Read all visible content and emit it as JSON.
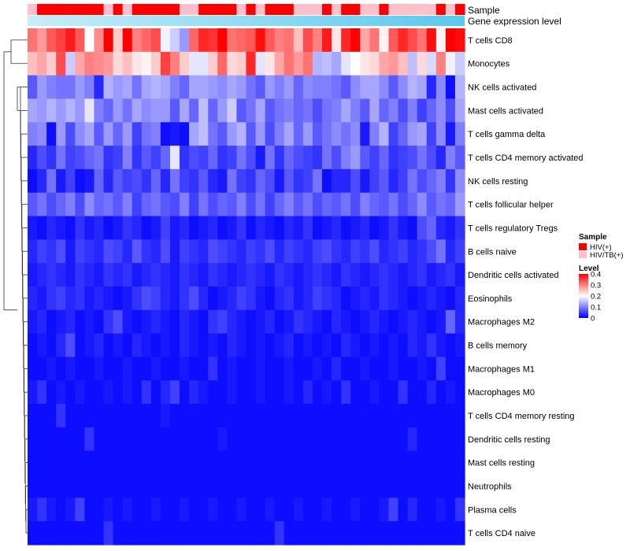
{
  "chart_data": {
    "type": "heatmap",
    "title": "",
    "row_labels": [
      "T cells CD8",
      "Monocytes",
      "NK cells activated",
      "Mast cells activated",
      "T cells gamma delta",
      "T cells CD4 memory activated",
      "NK cells resting",
      "T cells follicular helper",
      "T cells regulatory  Tregs",
      "B cells naive",
      "Dendritic cells activated",
      "Eosinophils",
      "Macrophages M2",
      "B cells memory",
      "Macrophages M1",
      "Macrophages M0",
      "T cells CD4 memory resting",
      "Dendritic cells resting",
      "Mast cells resting",
      "Neutrophils",
      "Plasma cells",
      "T cells CD4 naive"
    ],
    "n_samples": 46,
    "annotation_rows": [
      {
        "name": "Sample",
        "values": [
          "HIV/TB(+)",
          "HIV(+)",
          "HIV(+)",
          "HIV(+)",
          "HIV(+)",
          "HIV(+)",
          "HIV(+)",
          "HIV(+)",
          "HIV/TB(+)",
          "HIV(+)",
          "HIV/TB(+)",
          "HIV(+)",
          "HIV(+)",
          "HIV(+)",
          "HIV(+)",
          "HIV(+)",
          "HIV/TB(+)",
          "HIV/TB(+)",
          "HIV(+)",
          "HIV(+)",
          "HIV(+)",
          "HIV(+)",
          "HIV/TB(+)",
          "HIV(+)",
          "HIV/TB(+)",
          "HIV(+)",
          "HIV(+)",
          "HIV(+)",
          "HIV/TB(+)",
          "HIV/TB(+)",
          "HIV/TB(+)",
          "HIV(+)",
          "HIV/TB(+)",
          "HIV(+)",
          "HIV(+)",
          "HIV/TB(+)",
          "HIV/TB(+)",
          "HIV(+)",
          "HIV/TB(+)",
          "HIV/TB(+)",
          "HIV/TB(+)",
          "HIV/TB(+)",
          "HIV/TB(+)",
          "HIV(+)",
          "HIV/TB(+)",
          "HIV(+)"
        ]
      },
      {
        "name": "Gene expression level",
        "style": "gradient",
        "from": "#c8eef8",
        "to": "#5bc8ee"
      }
    ],
    "legend": {
      "sample_title": "Sample",
      "sample_items": [
        {
          "label": "HIV(+)",
          "color": "#ff0000"
        },
        {
          "label": "HIV/TB(+)",
          "color": "#ffc0cb"
        }
      ],
      "level_title": "Level",
      "level_ticks": [
        "0.4",
        "0.3",
        "0.2",
        "0.1",
        "0"
      ],
      "level_range": [
        0,
        0.4
      ],
      "placement": "right"
    },
    "color_scale": [
      "#0000ff",
      "#ffffff",
      "#ff0000"
    ],
    "values": [
      [
        0.31,
        0.28,
        0.33,
        0.35,
        0.38,
        0.33,
        0.2,
        0.29,
        0.4,
        0.24,
        0.4,
        0.3,
        0.32,
        0.34,
        0.19,
        0.16,
        0.12,
        0.32,
        0.37,
        0.36,
        0.4,
        0.31,
        0.32,
        0.33,
        0.39,
        0.33,
        0.3,
        0.31,
        0.25,
        0.34,
        0.3,
        0.38,
        0.22,
        0.37,
        0.4,
        0.27,
        0.31,
        0.21,
        0.33,
        0.37,
        0.34,
        0.31,
        0.39,
        0.21,
        0.4,
        0.39
      ],
      [
        0.25,
        0.27,
        0.24,
        0.34,
        0.16,
        0.27,
        0.3,
        0.29,
        0.28,
        0.23,
        0.25,
        0.22,
        0.21,
        0.24,
        0.35,
        0.3,
        0.24,
        0.18,
        0.18,
        0.24,
        0.32,
        0.23,
        0.24,
        0.37,
        0.18,
        0.22,
        0.27,
        0.31,
        0.28,
        0.31,
        0.14,
        0.15,
        0.13,
        0.18,
        0.2,
        0.22,
        0.23,
        0.27,
        0.28,
        0.25,
        0.15,
        0.23,
        0.17,
        0.3,
        0.19,
        0.16
      ],
      [
        0.07,
        0.12,
        0.1,
        0.09,
        0.09,
        0.12,
        0.1,
        0.03,
        0.14,
        0.12,
        0.13,
        0.09,
        0.13,
        0.14,
        0.13,
        0.1,
        0.08,
        0.13,
        0.13,
        0.12,
        0.11,
        0.13,
        0.12,
        0.09,
        0.07,
        0.12,
        0.1,
        0.12,
        0.08,
        0.11,
        0.1,
        0.1,
        0.09,
        0.07,
        0.11,
        0.13,
        0.13,
        0.11,
        0.07,
        0.11,
        0.14,
        0.13,
        0.03,
        0.11,
        0.01,
        0.14
      ],
      [
        0.13,
        0.12,
        0.14,
        0.12,
        0.14,
        0.12,
        0.18,
        0.1,
        0.08,
        0.12,
        0.09,
        0.13,
        0.11,
        0.12,
        0.12,
        0.07,
        0.13,
        0.08,
        0.15,
        0.08,
        0.12,
        0.16,
        0.07,
        0.09,
        0.13,
        0.07,
        0.09,
        0.1,
        0.08,
        0.09,
        0.06,
        0.09,
        0.1,
        0.13,
        0.1,
        0.07,
        0.13,
        0.08,
        0.1,
        0.06,
        0.1,
        0.05,
        0.08,
        0.11,
        0.06,
        0.13
      ],
      [
        0.1,
        0.11,
        0.01,
        0.12,
        0.06,
        0.11,
        0.13,
        0.07,
        0.12,
        0.08,
        0.12,
        0.05,
        0.09,
        0.1,
        0.01,
        0.02,
        0.01,
        0.13,
        0.15,
        0.09,
        0.07,
        0.12,
        0.14,
        0.07,
        0.12,
        0.06,
        0.1,
        0.13,
        0.08,
        0.12,
        0.07,
        0.09,
        0.11,
        0.09,
        0.11,
        0.02,
        0.1,
        0.14,
        0.05,
        0.08,
        0.12,
        0.13,
        0.05,
        0.11,
        0.02,
        0.1
      ],
      [
        0.03,
        0.06,
        0.04,
        0.09,
        0.05,
        0.06,
        0.08,
        0.09,
        0.04,
        0.05,
        0.1,
        0.04,
        0.07,
        0.05,
        0.08,
        0.18,
        0.04,
        0.06,
        0.05,
        0.08,
        0.04,
        0.05,
        0.09,
        0.06,
        0.02,
        0.09,
        0.04,
        0.08,
        0.06,
        0.05,
        0.04,
        0.09,
        0.06,
        0.1,
        0.12,
        0.07,
        0.05,
        0.08,
        0.04,
        0.05,
        0.06,
        0.09,
        0.06,
        0.03,
        0.1,
        0.07
      ],
      [
        0.01,
        0.03,
        0.09,
        0.02,
        0.05,
        0.01,
        0.02,
        0.08,
        0.03,
        0.07,
        0.05,
        0.06,
        0.04,
        0.08,
        0.03,
        0.09,
        0.05,
        0.04,
        0.07,
        0.03,
        0.02,
        0.09,
        0.05,
        0.04,
        0.08,
        0.06,
        0.02,
        0.07,
        0.04,
        0.05,
        0.09,
        0.01,
        0.03,
        0.03,
        0.06,
        0.02,
        0.05,
        0.07,
        0.03,
        0.05,
        0.09,
        0.06,
        0.08,
        0.1,
        0.04,
        0.11
      ],
      [
        0.07,
        0.09,
        0.06,
        0.08,
        0.1,
        0.06,
        0.11,
        0.08,
        0.09,
        0.07,
        0.1,
        0.05,
        0.08,
        0.09,
        0.07,
        0.06,
        0.1,
        0.05,
        0.09,
        0.06,
        0.08,
        0.07,
        0.1,
        0.06,
        0.09,
        0.05,
        0.08,
        0.1,
        0.07,
        0.09,
        0.06,
        0.08,
        0.07,
        0.09,
        0.06,
        0.1,
        0.08,
        0.07,
        0.09,
        0.06,
        0.08,
        0.11,
        0.07,
        0.09,
        0.08,
        0.12
      ],
      [
        0.02,
        0.01,
        0.03,
        0.02,
        0.01,
        0.04,
        0.02,
        0.03,
        0.01,
        0.02,
        0.04,
        0.03,
        0.01,
        0.02,
        0.05,
        0.02,
        0.03,
        0.01,
        0.02,
        0.03,
        0.01,
        0.02,
        0.04,
        0.01,
        0.03,
        0.02,
        0.01,
        0.03,
        0.02,
        0.04,
        0.01,
        0.02,
        0.03,
        0.01,
        0.02,
        0.03,
        0.01,
        0.02,
        0.04,
        0.02,
        0.01,
        0.06,
        0.08,
        0.03,
        0.02,
        0.04
      ],
      [
        0.03,
        0.05,
        0.04,
        0.06,
        0.02,
        0.05,
        0.04,
        0.03,
        0.06,
        0.05,
        0.03,
        0.07,
        0.04,
        0.03,
        0.06,
        0.02,
        0.05,
        0.04,
        0.03,
        0.06,
        0.05,
        0.04,
        0.03,
        0.05,
        0.04,
        0.06,
        0.03,
        0.05,
        0.04,
        0.03,
        0.05,
        0.06,
        0.04,
        0.03,
        0.05,
        0.04,
        0.06,
        0.03,
        0.04,
        0.05,
        0.03,
        0.04,
        0.06,
        0.09,
        0.03,
        0.05
      ],
      [
        0.02,
        0.03,
        0.04,
        0.03,
        0.02,
        0.04,
        0.03,
        0.02,
        0.04,
        0.03,
        0.04,
        0.02,
        0.03,
        0.04,
        0.03,
        0.02,
        0.04,
        0.03,
        0.02,
        0.04,
        0.03,
        0.02,
        0.03,
        0.04,
        0.03,
        0.02,
        0.04,
        0.03,
        0.02,
        0.03,
        0.04,
        0.03,
        0.02,
        0.04,
        0.03,
        0.02,
        0.03,
        0.04,
        0.03,
        0.02,
        0.03,
        0.04,
        0.02,
        0.03,
        0.04,
        0.02
      ],
      [
        0.03,
        0.02,
        0.04,
        0.05,
        0.03,
        0.04,
        0.02,
        0.03,
        0.02,
        0.01,
        0.02,
        0.04,
        0.06,
        0.05,
        0.03,
        0.02,
        0.04,
        0.06,
        0.03,
        0.01,
        0.02,
        0.03,
        0.05,
        0.04,
        0.02,
        0.01,
        0.03,
        0.04,
        0.02,
        0.03,
        0.05,
        0.04,
        0.03,
        0.01,
        0.02,
        0.03,
        0.02,
        0.04,
        0.03,
        0.02,
        0.01,
        0.02,
        0.03,
        0.02,
        0.01,
        0.03
      ],
      [
        0.02,
        0.03,
        0.01,
        0.02,
        0.03,
        0.01,
        0.02,
        0.01,
        0.04,
        0.06,
        0.02,
        0.01,
        0.02,
        0.03,
        0.02,
        0.01,
        0.03,
        0.02,
        0.01,
        0.04,
        0.05,
        0.03,
        0.02,
        0.01,
        0.02,
        0.03,
        0.01,
        0.02,
        0.04,
        0.03,
        0.02,
        0.01,
        0.03,
        0.02,
        0.01,
        0.02,
        0.03,
        0.02,
        0.01,
        0.02,
        0.03,
        0.02,
        0.01,
        0.02,
        0.08,
        0.03
      ],
      [
        0.01,
        0.02,
        0.01,
        0.03,
        0.06,
        0.01,
        0.02,
        0.03,
        0.01,
        0.02,
        0.01,
        0.03,
        0.02,
        0.01,
        0.02,
        0.01,
        0.03,
        0.02,
        0.01,
        0.02,
        0.01,
        0.03,
        0.02,
        0.01,
        0.02,
        0.01,
        0.02,
        0.03,
        0.01,
        0.02,
        0.01,
        0.02,
        0.01,
        0.03,
        0.02,
        0.01,
        0.02,
        0.01,
        0.02,
        0.01,
        0.03,
        0.02,
        0.04,
        0.02,
        0.01,
        0.02
      ],
      [
        0.01,
        0.01,
        0.02,
        0.01,
        0.02,
        0.01,
        0.01,
        0.02,
        0.01,
        0.01,
        0.02,
        0.01,
        0.01,
        0.02,
        0.01,
        0.01,
        0.02,
        0.01,
        0.01,
        0.04,
        0.01,
        0.02,
        0.01,
        0.01,
        0.02,
        0.01,
        0.01,
        0.02,
        0.01,
        0.01,
        0.02,
        0.01,
        0.03,
        0.01,
        0.01,
        0.02,
        0.01,
        0.01,
        0.02,
        0.01,
        0.01,
        0.02,
        0.01,
        0.05,
        0.01,
        0.01
      ],
      [
        0.02,
        0.04,
        0.01,
        0.02,
        0.01,
        0.02,
        0.01,
        0.01,
        0.02,
        0.01,
        0.02,
        0.01,
        0.04,
        0.01,
        0.03,
        0.05,
        0.01,
        0.03,
        0.02,
        0.01,
        0.01,
        0.02,
        0.01,
        0.01,
        0.02,
        0.01,
        0.01,
        0.02,
        0.01,
        0.03,
        0.01,
        0.02,
        0.01,
        0.04,
        0.01,
        0.01,
        0.02,
        0.01,
        0.01,
        0.04,
        0.01,
        0.01,
        0.03,
        0.01,
        0.02,
        0.01
      ],
      [
        0.01,
        0.01,
        0.01,
        0.04,
        0.01,
        0.01,
        0.01,
        0.01,
        0.01,
        0.01,
        0.01,
        0.01,
        0.01,
        0.01,
        0.02,
        0.01,
        0.01,
        0.01,
        0.01,
        0.01,
        0.01,
        0.01,
        0.01,
        0.01,
        0.01,
        0.01,
        0.01,
        0.01,
        0.01,
        0.01,
        0.01,
        0.01,
        0.01,
        0.01,
        0.01,
        0.01,
        0.01,
        0.01,
        0.01,
        0.01,
        0.01,
        0.01,
        0.01,
        0.01,
        0.01,
        0.01
      ],
      [
        0.01,
        0.01,
        0.01,
        0.01,
        0.01,
        0.01,
        0.04,
        0.01,
        0.01,
        0.01,
        0.01,
        0.01,
        0.01,
        0.01,
        0.01,
        0.01,
        0.01,
        0.01,
        0.01,
        0.01,
        0.02,
        0.01,
        0.01,
        0.01,
        0.01,
        0.01,
        0.01,
        0.01,
        0.01,
        0.01,
        0.01,
        0.01,
        0.01,
        0.01,
        0.01,
        0.01,
        0.01,
        0.01,
        0.01,
        0.01,
        0.03,
        0.01,
        0.01,
        0.01,
        0.01,
        0.01
      ],
      [
        0.01,
        0.01,
        0.01,
        0.01,
        0.01,
        0.01,
        0.01,
        0.01,
        0.01,
        0.01,
        0.01,
        0.01,
        0.01,
        0.01,
        0.01,
        0.01,
        0.01,
        0.01,
        0.01,
        0.01,
        0.01,
        0.01,
        0.01,
        0.01,
        0.01,
        0.01,
        0.01,
        0.01,
        0.01,
        0.01,
        0.01,
        0.01,
        0.01,
        0.01,
        0.01,
        0.01,
        0.01,
        0.01,
        0.01,
        0.01,
        0.01,
        0.01,
        0.01,
        0.01,
        0.01,
        0.01
      ],
      [
        0.01,
        0.01,
        0.01,
        0.01,
        0.01,
        0.01,
        0.01,
        0.01,
        0.01,
        0.01,
        0.01,
        0.01,
        0.01,
        0.01,
        0.01,
        0.01,
        0.01,
        0.01,
        0.01,
        0.01,
        0.01,
        0.01,
        0.01,
        0.01,
        0.01,
        0.01,
        0.01,
        0.01,
        0.01,
        0.01,
        0.01,
        0.01,
        0.01,
        0.01,
        0.01,
        0.01,
        0.01,
        0.01,
        0.01,
        0.01,
        0.01,
        0.01,
        0.01,
        0.01,
        0.01,
        0.01
      ],
      [
        0.02,
        0.04,
        0.02,
        0.01,
        0.02,
        0.05,
        0.01,
        0.01,
        0.02,
        0.01,
        0.02,
        0.01,
        0.01,
        0.02,
        0.01,
        0.01,
        0.02,
        0.01,
        0.01,
        0.02,
        0.01,
        0.01,
        0.02,
        0.01,
        0.01,
        0.02,
        0.01,
        0.01,
        0.02,
        0.01,
        0.01,
        0.02,
        0.01,
        0.01,
        0.02,
        0.01,
        0.01,
        0.02,
        0.05,
        0.01,
        0.03,
        0.01,
        0.01,
        0.02,
        0.01,
        0.04
      ],
      [
        0.01,
        0.01,
        0.01,
        0.01,
        0.01,
        0.01,
        0.01,
        0.01,
        0.04,
        0.01,
        0.01,
        0.01,
        0.01,
        0.01,
        0.01,
        0.01,
        0.01,
        0.01,
        0.01,
        0.01,
        0.01,
        0.01,
        0.01,
        0.01,
        0.01,
        0.01,
        0.04,
        0.01,
        0.01,
        0.01,
        0.01,
        0.01,
        0.01,
        0.01,
        0.01,
        0.01,
        0.01,
        0.01,
        0.01,
        0.01,
        0.01,
        0.01,
        0.01,
        0.01,
        0.01,
        0.01
      ]
    ]
  }
}
